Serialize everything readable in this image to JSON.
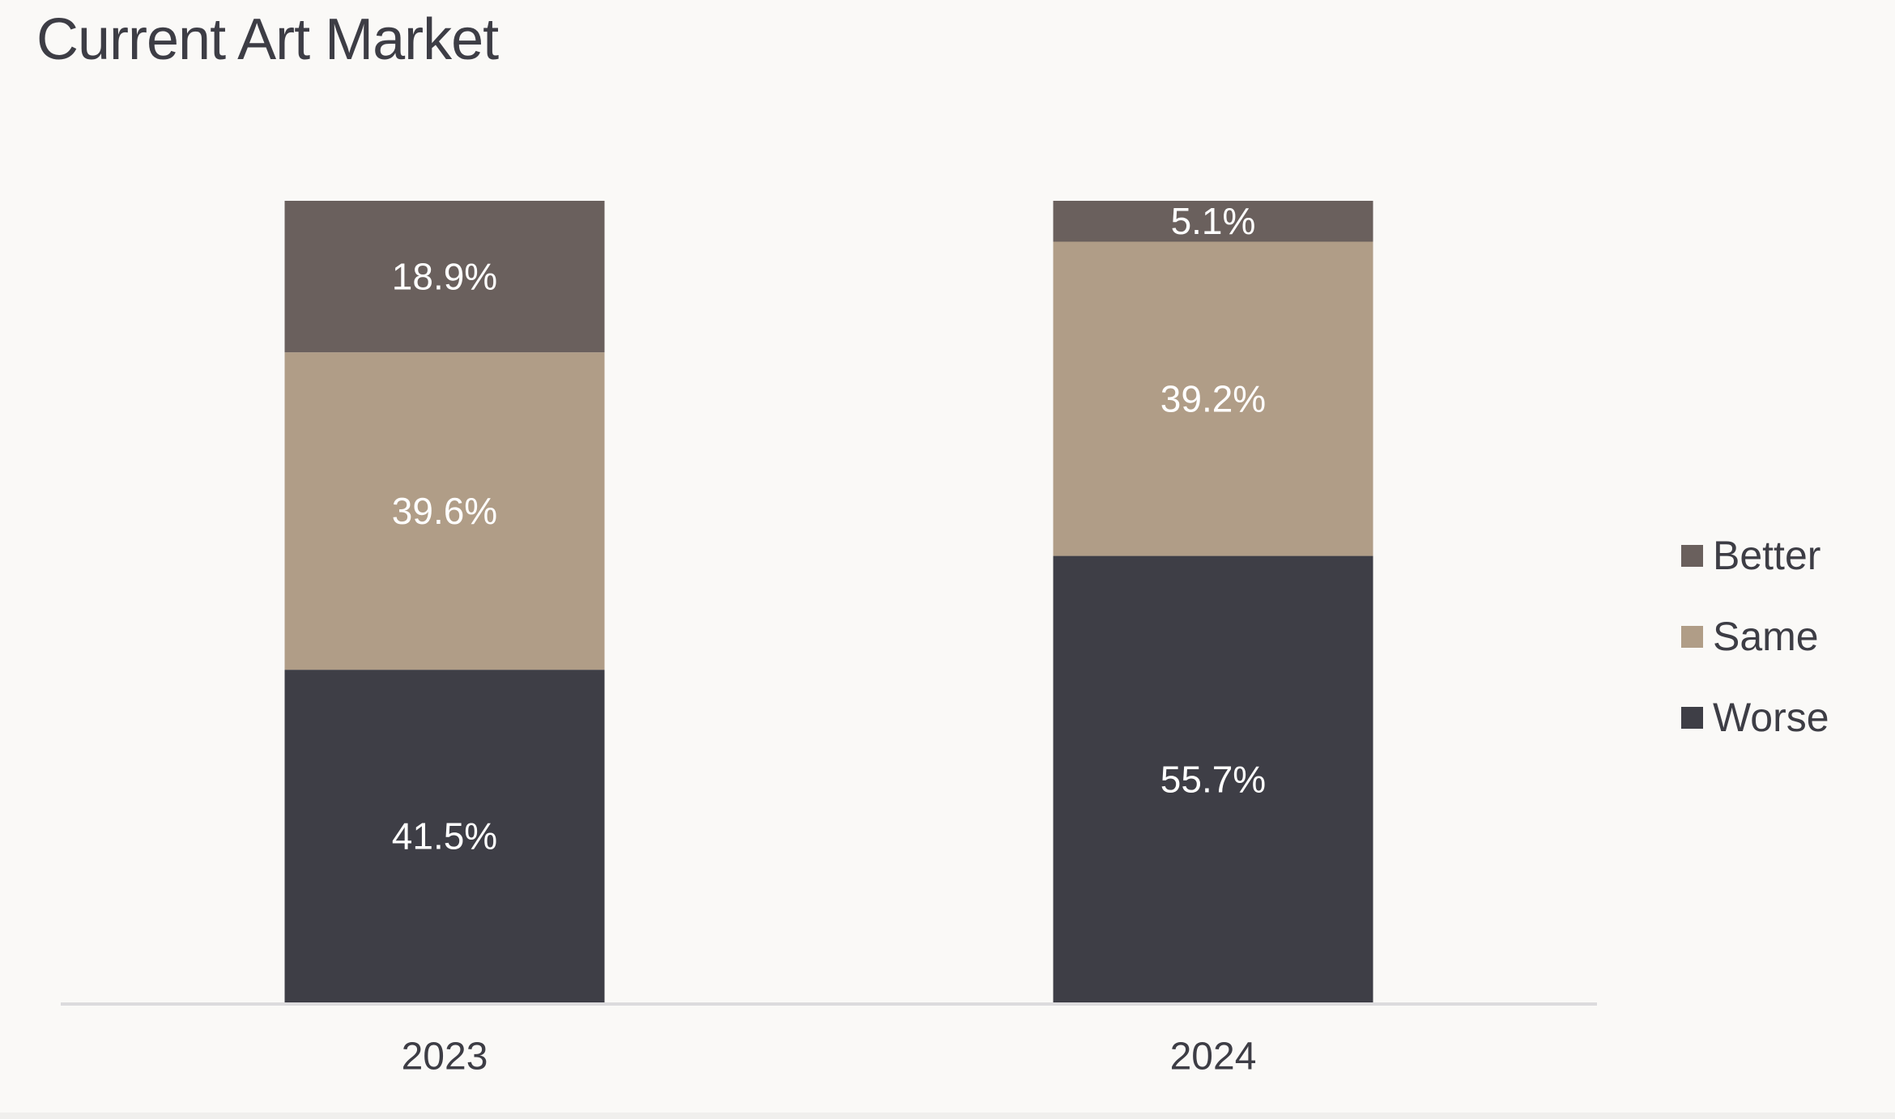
{
  "chart_data": {
    "type": "bar",
    "stacked": true,
    "title": "Current Art Market",
    "xlabel": "",
    "ylabel": "",
    "categories": [
      "2023",
      "2024"
    ],
    "ylim": [
      0,
      100
    ],
    "grid": false,
    "legend_position": "right",
    "series": [
      {
        "name": "Worse",
        "values": [
          41.5,
          55.7
        ],
        "color": "#3e3e46",
        "labels": [
          "41.5%",
          "55.7%"
        ]
      },
      {
        "name": "Same",
        "values": [
          39.6,
          39.2
        ],
        "color": "#b09d87",
        "labels": [
          "39.6%",
          "39.2%"
        ]
      },
      {
        "name": "Better",
        "values": [
          18.9,
          5.1
        ],
        "color": "#6a605d",
        "labels": [
          "18.9%",
          "5.1%"
        ]
      }
    ],
    "legend_order": [
      "Better",
      "Same",
      "Worse"
    ]
  }
}
